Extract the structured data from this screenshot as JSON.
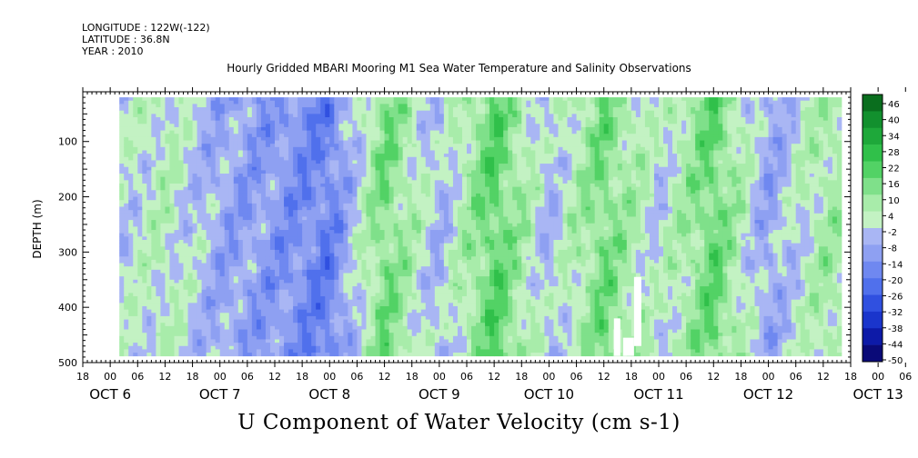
{
  "header": {
    "longitude": "LONGITUDE : 122W(-122)",
    "latitude": "LATITUDE : 36.8N",
    "year": "YEAR : 2010",
    "title": "Hourly Gridded MBARI Mooring M1 Sea Water Temperature and Salinity Observations"
  },
  "chart_data": {
    "type": "heatmap",
    "title": "Hourly Gridded MBARI Mooring M1 Sea Water Temperature and Salinity Observations",
    "xlabel": "U Component of Water Velocity (cm s-1)",
    "ylabel": "DEPTH (m)",
    "x_range_hours_of_day": [
      "OCT 6 18:00",
      "OCT 13 18:00"
    ],
    "x_hour_ticks": [
      "18",
      "00",
      "06",
      "12",
      "18",
      "00",
      "06",
      "12",
      "18",
      "00",
      "06",
      "12",
      "18",
      "00",
      "06",
      "12",
      "18",
      "00",
      "06",
      "12",
      "18",
      "00",
      "06",
      "12",
      "18",
      "00",
      "06",
      "12",
      "18",
      "00",
      "06",
      "12",
      "18"
    ],
    "x_day_labels": [
      "OCT  6",
      "OCT  7",
      "OCT  8",
      "OCT  9",
      "OCT 10",
      "OCT 11",
      "OCT 12",
      "OCT 13"
    ],
    "y_ticks": [
      100,
      200,
      300,
      400,
      500
    ],
    "ylim": [
      500,
      10
    ],
    "data_depth_range": [
      20,
      488
    ],
    "colorbar_levels": [
      -50,
      -44,
      -38,
      -32,
      -26,
      -20,
      -14,
      -8,
      -2,
      4,
      10,
      16,
      22,
      28,
      34,
      40,
      46
    ],
    "colorbar_labels": [
      "46",
      "40",
      "34",
      "28",
      "22",
      "16",
      "10",
      "4",
      "-2",
      "-8",
      "-14",
      "-20",
      "-26",
      "-32",
      "-38",
      "-44",
      "-50"
    ],
    "approx_column_means_cm_s": {
      "OCT 7 00": -4,
      "OCT 7 12": 3,
      "OCT 8 00": -8,
      "OCT 8 12": -12,
      "OCT 9 00": -18,
      "OCT 9 12": 14,
      "OCT 10 00": -6,
      "OCT 10 12": 18,
      "OCT 11 00": -5,
      "OCT 11 12": 14,
      "OCT 12 00": -2,
      "OCT 12 12": 16,
      "OCT 13 00": -9,
      "OCT 13 12": 6
    },
    "colors": {
      "negative_strong": "#0a0a8c",
      "negative_weak": "#a8b4f0",
      "neutral": "#c0f0c0",
      "positive_weak": "#7fe08a",
      "positive_strong": "#0a6e1e",
      "missing": "#ffffff"
    },
    "grid": false
  }
}
